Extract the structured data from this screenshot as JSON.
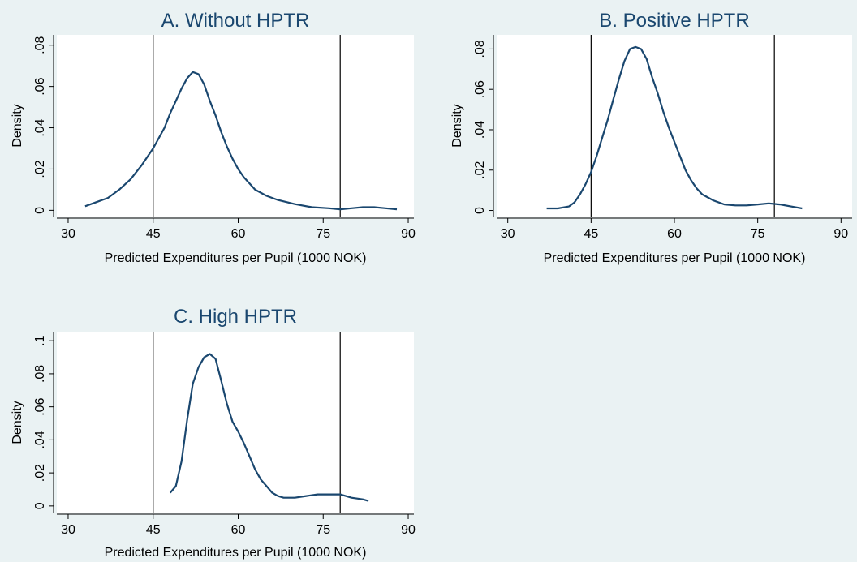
{
  "chart_data": [
    {
      "type": "line",
      "title": "A. Without HPTR",
      "xlabel": "Predicted Expenditures per Pupil (1000 NOK)",
      "ylabel": "Density",
      "xlim": [
        28,
        91
      ],
      "ylim": [
        -0.003,
        0.085
      ],
      "xticks": [
        30,
        45,
        60,
        75,
        90
      ],
      "yticks": [
        0,
        0.02,
        0.04,
        0.06,
        0.08
      ],
      "ytick_labels": [
        "0",
        ".02",
        ".04",
        ".06",
        ".08"
      ],
      "reference_lines_x": [
        45,
        78
      ],
      "grid": false,
      "legend": "none",
      "series": [
        {
          "x": [
            33,
            35,
            37,
            39,
            41,
            43,
            45,
            47,
            48,
            49,
            50,
            51,
            52,
            53,
            54,
            55,
            56,
            57,
            58,
            59,
            60,
            61,
            62,
            63,
            65,
            67,
            70,
            73,
            76,
            78,
            80,
            82,
            84,
            86,
            88
          ],
          "y": [
            0.002,
            0.004,
            0.006,
            0.01,
            0.015,
            0.022,
            0.03,
            0.04,
            0.047,
            0.053,
            0.059,
            0.064,
            0.067,
            0.066,
            0.061,
            0.053,
            0.046,
            0.038,
            0.031,
            0.025,
            0.02,
            0.016,
            0.013,
            0.01,
            0.007,
            0.005,
            0.003,
            0.0015,
            0.001,
            0.0005,
            0.001,
            0.0015,
            0.0015,
            0.001,
            0.0005
          ]
        }
      ]
    },
    {
      "type": "line",
      "title": "B. Positive HPTR",
      "xlabel": "Predicted Expenditures per Pupil (1000 NOK)",
      "ylabel": "Density",
      "xlim": [
        28,
        92
      ],
      "ylim": [
        -0.003,
        0.087
      ],
      "xticks": [
        30,
        45,
        60,
        75,
        90
      ],
      "yticks": [
        0,
        0.02,
        0.04,
        0.06,
        0.08
      ],
      "ytick_labels": [
        "0",
        ".02",
        ".04",
        ".06",
        ".08"
      ],
      "reference_lines_x": [
        45,
        78
      ],
      "grid": false,
      "legend": "none",
      "series": [
        {
          "x": [
            37,
            39,
            41,
            42,
            43,
            44,
            45,
            46,
            47,
            48,
            49,
            50,
            51,
            52,
            53,
            54,
            55,
            56,
            57,
            58,
            59,
            60,
            61,
            62,
            63,
            64,
            65,
            67,
            69,
            71,
            73,
            75,
            77,
            79,
            81,
            83
          ],
          "y": [
            0.001,
            0.001,
            0.002,
            0.004,
            0.008,
            0.013,
            0.019,
            0.027,
            0.036,
            0.045,
            0.055,
            0.065,
            0.074,
            0.08,
            0.081,
            0.08,
            0.075,
            0.066,
            0.058,
            0.049,
            0.041,
            0.034,
            0.027,
            0.02,
            0.015,
            0.011,
            0.008,
            0.005,
            0.003,
            0.0025,
            0.0025,
            0.003,
            0.0035,
            0.003,
            0.002,
            0.001
          ]
        }
      ]
    },
    {
      "type": "line",
      "title": "C. High HPTR",
      "xlabel": "Predicted Expenditures per Pupil (1000 NOK)",
      "ylabel": "Density",
      "xlim": [
        28,
        91
      ],
      "ylim": [
        -0.004,
        0.105
      ],
      "xticks": [
        30,
        45,
        60,
        75,
        90
      ],
      "yticks": [
        0,
        0.02,
        0.04,
        0.06,
        0.08,
        0.1
      ],
      "ytick_labels": [
        "0",
        ".02",
        ".04",
        ".06",
        ".08",
        ".1"
      ],
      "reference_lines_x": [
        45,
        78
      ],
      "grid": false,
      "legend": "none",
      "series": [
        {
          "x": [
            48,
            49,
            50,
            51,
            52,
            53,
            54,
            55,
            56,
            57,
            58,
            59,
            60,
            61,
            62,
            63,
            64,
            65,
            66,
            67,
            68,
            70,
            72,
            74,
            76,
            78,
            80,
            82,
            83
          ],
          "y": [
            0.008,
            0.012,
            0.027,
            0.052,
            0.074,
            0.084,
            0.09,
            0.092,
            0.089,
            0.076,
            0.062,
            0.051,
            0.045,
            0.038,
            0.03,
            0.022,
            0.016,
            0.012,
            0.008,
            0.006,
            0.005,
            0.005,
            0.006,
            0.007,
            0.007,
            0.007,
            0.005,
            0.004,
            0.003
          ]
        }
      ]
    }
  ]
}
